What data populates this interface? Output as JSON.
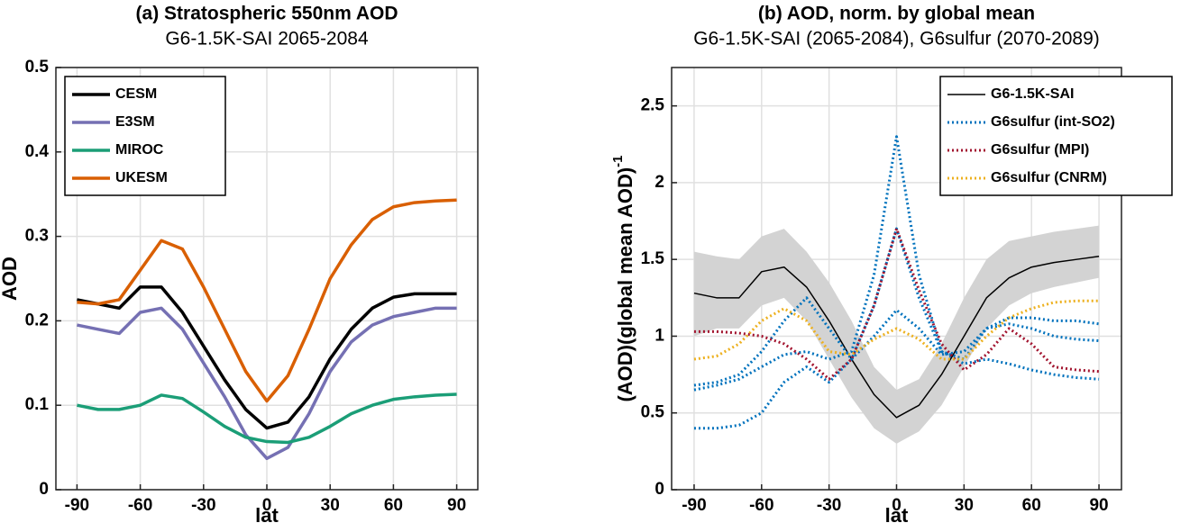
{
  "chart_data": [
    {
      "type": "line",
      "title": "(a) Stratospheric 550nm AOD",
      "subtitle": "G6-1.5K-SAI 2065-2084",
      "xlabel": "lat",
      "ylabel": "AOD",
      "x": [
        -90,
        -80,
        -70,
        -60,
        -50,
        -40,
        -30,
        -20,
        -10,
        0,
        10,
        20,
        30,
        40,
        50,
        60,
        70,
        80,
        90
      ],
      "xlim": [
        -100,
        100
      ],
      "xticks": [
        -90,
        -60,
        -30,
        0,
        30,
        60,
        90
      ],
      "ylim": [
        0,
        0.5
      ],
      "yticks": [
        0,
        0.1,
        0.2,
        0.3,
        0.4,
        0.5
      ],
      "grid": true,
      "legend": "upper left",
      "series": [
        {
          "name": "CESM",
          "color": "#000000",
          "values": [
            0.225,
            0.22,
            0.215,
            0.24,
            0.24,
            0.21,
            0.17,
            0.13,
            0.095,
            0.073,
            0.08,
            0.11,
            0.155,
            0.19,
            0.215,
            0.228,
            0.232,
            0.232,
            0.232
          ]
        },
        {
          "name": "E3SM",
          "color": "#7570b3",
          "values": [
            0.195,
            0.19,
            0.185,
            0.21,
            0.215,
            0.19,
            0.15,
            0.11,
            0.065,
            0.037,
            0.05,
            0.09,
            0.14,
            0.175,
            0.195,
            0.205,
            0.21,
            0.215,
            0.215
          ]
        },
        {
          "name": "MIROC",
          "color": "#1b9e77",
          "values": [
            0.1,
            0.095,
            0.095,
            0.1,
            0.112,
            0.108,
            0.092,
            0.075,
            0.062,
            0.057,
            0.056,
            0.062,
            0.075,
            0.09,
            0.1,
            0.107,
            0.11,
            0.112,
            0.113
          ]
        },
        {
          "name": "UKESM",
          "color": "#d95f02",
          "values": [
            0.222,
            0.22,
            0.225,
            0.26,
            0.295,
            0.285,
            0.24,
            0.19,
            0.14,
            0.105,
            0.135,
            0.19,
            0.25,
            0.29,
            0.32,
            0.335,
            0.34,
            0.342,
            0.343
          ]
        }
      ]
    },
    {
      "type": "line",
      "title": "(b) AOD, norm. by global mean",
      "subtitle": "G6-1.5K-SAI (2065-2084), G6sulfur (2070-2089)",
      "xlabel": "lat",
      "ylabel": "(AOD)(global mean AOD)",
      "ylabel_superscript": "-1",
      "x": [
        -90,
        -80,
        -70,
        -60,
        -50,
        -40,
        -30,
        -20,
        -10,
        0,
        10,
        20,
        30,
        40,
        50,
        60,
        70,
        80,
        90
      ],
      "xlim": [
        -100,
        100
      ],
      "xticks": [
        -90,
        -60,
        -30,
        0,
        30,
        60,
        90
      ],
      "ylim": [
        0,
        2.75
      ],
      "yticks": [
        0,
        0.5,
        1,
        1.5,
        2,
        2.5
      ],
      "grid": true,
      "legend": "upper right",
      "series": [
        {
          "name": "G6-1.5K-SAI",
          "color": "#000000",
          "band_color": "#d3d3d3",
          "values": [
            1.28,
            1.25,
            1.25,
            1.42,
            1.45,
            1.32,
            1.1,
            0.85,
            0.62,
            0.47,
            0.55,
            0.75,
            1.0,
            1.25,
            1.38,
            1.45,
            1.48,
            1.5,
            1.52
          ],
          "upper": [
            1.55,
            1.52,
            1.5,
            1.65,
            1.7,
            1.55,
            1.35,
            1.1,
            0.8,
            0.65,
            0.72,
            0.95,
            1.25,
            1.5,
            1.62,
            1.65,
            1.68,
            1.7,
            1.72
          ],
          "lower": [
            1.0,
            1.05,
            1.05,
            1.2,
            1.25,
            1.1,
            0.85,
            0.6,
            0.4,
            0.3,
            0.38,
            0.55,
            0.8,
            1.05,
            1.2,
            1.28,
            1.32,
            1.35,
            1.38
          ]
        },
        {
          "name": "G6sulfur (int-SO2)",
          "color": "#0072bd",
          "dash": "dotted",
          "values": [
            0.65,
            0.68,
            0.72,
            0.8,
            0.88,
            0.9,
            0.85,
            0.9,
            1.4,
            2.3,
            1.4,
            0.9,
            0.82,
            0.85,
            0.82,
            0.78,
            0.75,
            0.73,
            0.72
          ]
        },
        {
          "color": "#0072bd",
          "dash": "dotted",
          "values": [
            0.4,
            0.4,
            0.42,
            0.5,
            0.7,
            0.8,
            0.7,
            0.85,
            1.2,
            1.7,
            1.25,
            0.9,
            0.85,
            1.05,
            1.12,
            1.12,
            1.1,
            1.1,
            1.08
          ]
        },
        {
          "color": "#0072bd",
          "dash": "dotted",
          "values": [
            0.68,
            0.7,
            0.75,
            0.9,
            1.1,
            1.25,
            1.05,
            0.85,
            1.0,
            1.17,
            1.05,
            0.88,
            0.9,
            1.05,
            1.08,
            1.05,
            1.0,
            0.98,
            0.97
          ]
        },
        {
          "name": "G6sulfur (MPI)",
          "color": "#a2142f",
          "dash": "dotted",
          "values": [
            1.03,
            1.03,
            1.02,
            1.0,
            0.95,
            0.85,
            0.72,
            0.85,
            1.2,
            1.7,
            1.3,
            0.95,
            0.78,
            0.88,
            1.05,
            0.95,
            0.8,
            0.78,
            0.77
          ]
        },
        {
          "name": "G6sulfur (CNRM)",
          "color": "#edb120",
          "dash": "dotted",
          "values": [
            0.85,
            0.87,
            0.95,
            1.1,
            1.18,
            1.1,
            0.9,
            0.88,
            0.98,
            1.05,
            0.98,
            0.85,
            0.85,
            1.0,
            1.12,
            1.18,
            1.22,
            1.23,
            1.23
          ]
        }
      ]
    }
  ]
}
